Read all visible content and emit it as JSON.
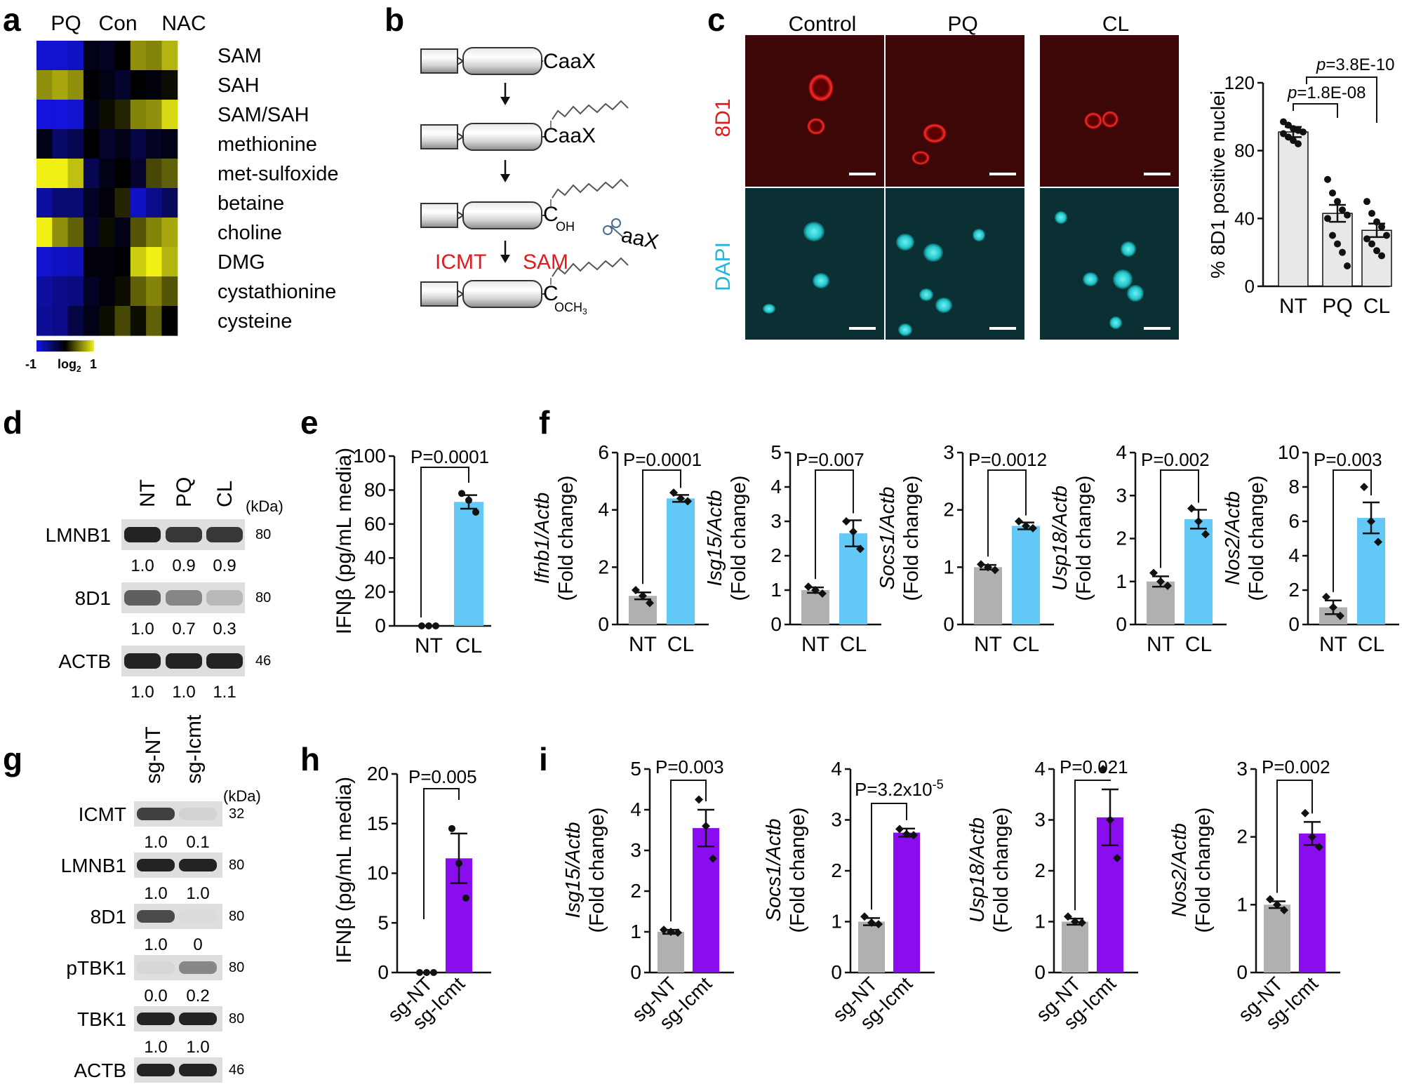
{
  "panels": {
    "a": {
      "letter": "a",
      "groups": [
        "PQ",
        "Con",
        "NAC"
      ],
      "rows": [
        "SAM",
        "SAH",
        "SAM/SAH",
        "methionine",
        "met-sulfoxide",
        "betaine",
        "choline",
        "DMG",
        "cystathionine",
        "cysteine"
      ],
      "matrix": [
        [
          -0.9,
          -0.9,
          -0.85,
          -0.1,
          -0.15,
          0.0,
          0.6,
          0.55,
          0.75
        ],
        [
          0.6,
          0.7,
          0.6,
          0.0,
          -0.1,
          -0.2,
          0.0,
          -0.05,
          0.05
        ],
        [
          -0.95,
          -0.95,
          -0.9,
          -0.1,
          0.05,
          0.15,
          0.55,
          0.6,
          0.9
        ],
        [
          -0.1,
          -0.45,
          -0.35,
          0.0,
          -0.2,
          -0.1,
          -0.3,
          -0.15,
          -0.1
        ],
        [
          1.0,
          1.0,
          0.8,
          -0.35,
          -0.1,
          0.0,
          -0.2,
          0.3,
          0.4
        ],
        [
          -0.7,
          -0.5,
          -0.5,
          -0.15,
          -0.05,
          0.15,
          -0.85,
          -0.6,
          -0.4
        ],
        [
          1.0,
          0.6,
          0.4,
          -0.2,
          0.05,
          -0.1,
          0.35,
          0.55,
          0.7
        ],
        [
          -0.9,
          -0.85,
          -0.8,
          -0.05,
          -0.05,
          0.0,
          0.85,
          1.0,
          0.75
        ],
        [
          -0.7,
          -0.6,
          -0.55,
          -0.15,
          -0.05,
          0.05,
          0.4,
          0.55,
          0.35
        ],
        [
          -0.65,
          -0.6,
          -0.3,
          -0.1,
          0.05,
          0.3,
          0.05,
          0.4,
          0.0
        ]
      ],
      "scale_min": "-1",
      "scale_label": "log",
      "scale_label_sub": "2",
      "scale_max": "1",
      "colors": {
        "low": "#1414e6",
        "mid": "#000000",
        "high": "#f0f014"
      }
    },
    "b": {
      "letter": "b",
      "motif_1": "CaaX",
      "motif_2": "CaaX",
      "cleavage_c": "C",
      "cleavage_oh": "OH",
      "cleaved": "aaX",
      "enzyme": "ICMT",
      "cofactor": "SAM",
      "methyl_c": "C",
      "methyl_group": "OCH",
      "methyl_sub": "3",
      "red": "#e31a1c"
    },
    "c": {
      "letter": "c",
      "columns": [
        "Control",
        "PQ",
        "CL"
      ],
      "row_labels": [
        "8D1",
        "DAPI"
      ],
      "row_colors": [
        "#e31a1c",
        "#1fb6e0"
      ],
      "chart_data": {
        "type": "bar",
        "categories": [
          "NT",
          "PQ",
          "CL"
        ],
        "values": [
          91,
          43,
          33
        ],
        "errors": [
          3,
          5,
          4
        ],
        "points": [
          [
            97,
            95,
            93,
            92,
            91,
            90,
            88,
            86,
            84
          ],
          [
            63,
            55,
            50,
            45,
            42,
            40,
            30,
            25,
            20,
            12
          ],
          [
            50,
            43,
            38,
            35,
            30,
            28,
            25,
            21,
            18
          ]
        ],
        "ylabel": "% 8D1 positive nuclei",
        "yticks": [
          "0",
          "40",
          "80",
          "120"
        ],
        "ylim": [
          0,
          120
        ],
        "annotations": [
          {
            "prefix": "p",
            "value": "=1.8E-08",
            "from": 0,
            "to": 1
          },
          {
            "prefix": "p",
            "value": "=3.8E-10",
            "from": 0,
            "to": 2
          }
        ],
        "bar_color": "#e8e8e8"
      }
    },
    "d": {
      "letter": "d",
      "lanes": [
        "NT",
        "PQ",
        "CL"
      ],
      "kda": "(kDa)",
      "bands": [
        {
          "name": "LMNB1",
          "kda": "80",
          "quant": [
            "1.0",
            "0.9",
            "0.9"
          ],
          "intensity": [
            1.0,
            0.9,
            0.9
          ]
        },
        {
          "name": "8D1",
          "kda": "80",
          "quant": [
            "1.0",
            "0.7",
            "0.3"
          ],
          "intensity": [
            0.7,
            0.5,
            0.25
          ]
        },
        {
          "name": "ACTB",
          "kda": "46",
          "quant": [
            "1.0",
            "1.0",
            "1.1"
          ],
          "intensity": [
            1.0,
            1.0,
            1.0
          ]
        }
      ]
    },
    "e": {
      "letter": "e",
      "chart_data": {
        "type": "bar",
        "categories": [
          "NT",
          "CL"
        ],
        "values": [
          0,
          73
        ],
        "errors": [
          0,
          4
        ],
        "points": [
          [
            0,
            0,
            0
          ],
          [
            78,
            74,
            67
          ]
        ],
        "ylabel": "IFNβ  (pg/mL media)",
        "yticks": [
          "0",
          "20",
          "40",
          "60",
          "80",
          "100"
        ],
        "ylim": [
          0,
          100
        ],
        "pvalue": "P=0.0001",
        "colors": [
          "#b0b0b0",
          "#62c8f5"
        ]
      }
    },
    "f": {
      "letter": "f",
      "charts": [
        {
          "gene": "Ifnb1",
          "ylim": [
            0,
            6
          ],
          "yticks": [
            "0",
            "2",
            "4",
            "6"
          ],
          "values": [
            1.0,
            4.4
          ],
          "errors": [
            0.12,
            0.12
          ],
          "points": [
            [
              1.2,
              1.0,
              0.75
            ],
            [
              4.6,
              4.4,
              4.3
            ]
          ],
          "pvalue": "P=0.0001"
        },
        {
          "gene": "Isg15",
          "ylim": [
            0,
            5
          ],
          "yticks": [
            "0",
            "1",
            "2",
            "3",
            "4",
            "5"
          ],
          "values": [
            1.0,
            2.65
          ],
          "errors": [
            0.08,
            0.38
          ],
          "points": [
            [
              1.1,
              1.0,
              0.9
            ],
            [
              3.0,
              2.7,
              2.2
            ]
          ],
          "pvalue": "P=0.007"
        },
        {
          "gene": "Socs1",
          "ylim": [
            0,
            3
          ],
          "yticks": [
            "0",
            "1",
            "2",
            "3"
          ],
          "values": [
            1.0,
            1.72
          ],
          "errors": [
            0.04,
            0.06
          ],
          "points": [
            [
              1.05,
              1.0,
              0.95
            ],
            [
              1.8,
              1.72,
              1.68
            ]
          ],
          "pvalue": "P=0.0012"
        },
        {
          "gene": "Usp18",
          "ylim": [
            0,
            4
          ],
          "yticks": [
            "0",
            "1",
            "2",
            "3",
            "4"
          ],
          "values": [
            1.0,
            2.45
          ],
          "errors": [
            0.12,
            0.22
          ],
          "points": [
            [
              1.2,
              1.0,
              0.9
            ],
            [
              2.7,
              2.4,
              2.1
            ]
          ],
          "pvalue": "P=0.002"
        },
        {
          "gene": "Nos2",
          "ylim": [
            0,
            10
          ],
          "yticks": [
            "0",
            "2",
            "4",
            "6",
            "8",
            "10"
          ],
          "values": [
            1.0,
            6.2
          ],
          "errors": [
            0.4,
            0.9
          ],
          "points": [
            [
              1.6,
              1.0,
              0.5
            ],
            [
              8.0,
              6.0,
              4.8
            ]
          ],
          "pvalue": "P=0.003"
        }
      ],
      "categories": [
        "NT",
        "CL"
      ],
      "ylabel_suffix": "/Actb",
      "ylabel_line2": "(Fold change)",
      "colors": [
        "#b0b0b0",
        "#62c8f5"
      ]
    },
    "g": {
      "letter": "g",
      "lanes": [
        "sg-NT",
        "sg-Icmt"
      ],
      "kda": "(kDa)",
      "bands": [
        {
          "name": "ICMT",
          "kda": "32",
          "quant": [
            "1.0",
            "0.1"
          ],
          "intensity": [
            0.85,
            0.12
          ]
        },
        {
          "name": "LMNB1",
          "kda": "80",
          "quant": [
            "1.0",
            "1.0"
          ],
          "intensity": [
            1.0,
            1.0
          ]
        },
        {
          "name": "8D1",
          "kda": "80",
          "quant": [
            "1.0",
            "0"
          ],
          "intensity": [
            0.8,
            0.08
          ]
        },
        {
          "name": "pTBK1",
          "kda": "80",
          "quant": [
            "0.0",
            "0.2"
          ],
          "intensity": [
            0.1,
            0.5
          ]
        },
        {
          "name": "TBK1",
          "kda": "80",
          "quant": [
            "1.0",
            "1.0"
          ],
          "intensity": [
            1.0,
            1.0
          ]
        },
        {
          "name": "ACTB",
          "kda": "46",
          "quant": [
            "1.0",
            "1.0"
          ],
          "intensity": [
            1.0,
            1.0
          ]
        }
      ]
    },
    "h": {
      "letter": "h",
      "chart_data": {
        "type": "bar",
        "categories": [
          "sg-NT",
          "sg-Icmt"
        ],
        "values": [
          0,
          11.5
        ],
        "errors": [
          0,
          2.5
        ],
        "points": [
          [
            0,
            0,
            0
          ],
          [
            14.5,
            11,
            7.5
          ]
        ],
        "ylabel": "IFNβ (pg/mL media)",
        "yticks": [
          "0",
          "5",
          "10",
          "15",
          "20"
        ],
        "ylim": [
          0,
          20
        ],
        "pvalue": "P=0.005",
        "colors": [
          "#b0b0b0",
          "#8a0df0"
        ]
      }
    },
    "i": {
      "letter": "i",
      "charts": [
        {
          "gene": "Isg15",
          "ylim": [
            0,
            5
          ],
          "yticks": [
            "0",
            "1",
            "2",
            "3",
            "4",
            "5"
          ],
          "values": [
            1.0,
            3.55
          ],
          "errors": [
            0.05,
            0.45
          ],
          "points": [
            [
              1.05,
              1.0,
              0.98
            ],
            [
              4.25,
              3.6,
              2.8
            ]
          ],
          "pvalue": "P=0.003",
          "pvalue_sup": ""
        },
        {
          "gene": "Socs1",
          "ylim": [
            0,
            4
          ],
          "yticks": [
            "0",
            "1",
            "2",
            "3",
            "4"
          ],
          "values": [
            1.0,
            2.75
          ],
          "errors": [
            0.07,
            0.08
          ],
          "points": [
            [
              1.1,
              0.98,
              0.95
            ],
            [
              2.82,
              2.72,
              2.7
            ]
          ],
          "pvalue": "P=3.2x10",
          "pvalue_sup": "-5"
        },
        {
          "gene": "Usp18",
          "ylim": [
            0,
            4
          ],
          "yticks": [
            "0",
            "1",
            "2",
            "3",
            "4"
          ],
          "values": [
            1.0,
            3.05
          ],
          "errors": [
            0.06,
            0.55
          ],
          "points": [
            [
              1.1,
              1.0,
              0.98
            ],
            [
              4.0,
              3.0,
              2.25
            ]
          ],
          "pvalue": "P=0.021",
          "pvalue_sup": ""
        },
        {
          "gene": "Nos2",
          "ylim": [
            0,
            3
          ],
          "yticks": [
            "0",
            "1",
            "2",
            "3"
          ],
          "values": [
            1.0,
            2.05
          ],
          "errors": [
            0.05,
            0.17
          ],
          "points": [
            [
              1.08,
              1.0,
              0.92
            ],
            [
              2.35,
              2.0,
              1.85
            ]
          ],
          "pvalue": "P=0.002",
          "pvalue_sup": ""
        }
      ],
      "categories": [
        "sg-NT",
        "sg-Icmt"
      ],
      "ylabel_suffix": "/Actb",
      "ylabel_line2": "(Fold change)",
      "colors": [
        "#b0b0b0",
        "#8a0df0"
      ]
    }
  }
}
